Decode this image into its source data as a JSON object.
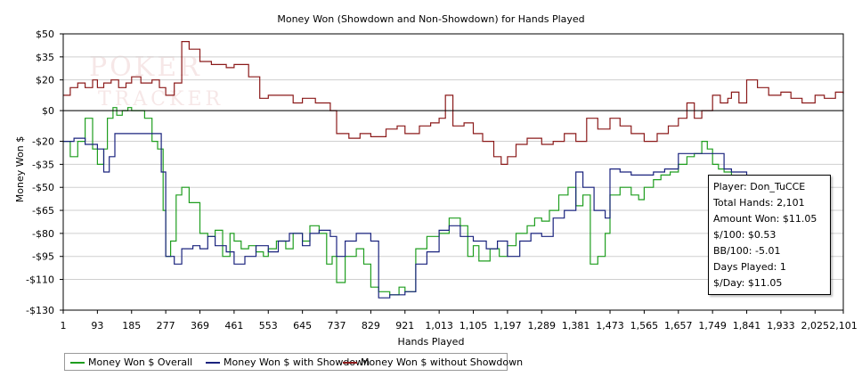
{
  "chart_data": {
    "type": "line",
    "title": "Money Won (Showdown and Non-Showdown) for Hands Played",
    "xlabel": "Hands Played",
    "ylabel": "Money Won $",
    "xlim": [
      1,
      2101
    ],
    "ylim": [
      -130,
      50
    ],
    "x_ticks": [
      1,
      93,
      185,
      277,
      369,
      461,
      553,
      645,
      737,
      829,
      921,
      1013,
      1105,
      1197,
      1289,
      1381,
      1473,
      1565,
      1657,
      1749,
      1841,
      1933,
      2025,
      2101
    ],
    "x_tick_labels": [
      "1",
      "93",
      "185",
      "277",
      "369",
      "461",
      "553",
      "645",
      "737",
      "829",
      "921",
      "1,013",
      "1,105",
      "1,197",
      "1,289",
      "1,381",
      "1,473",
      "1,565",
      "1,657",
      "1,749",
      "1,841",
      "1,933",
      "2,025",
      "2,101"
    ],
    "y_ticks": [
      50,
      35,
      20,
      0,
      -20,
      -35,
      -50,
      -65,
      -80,
      -95,
      -110,
      -130
    ],
    "y_tick_labels": [
      "$50",
      "$35",
      "$20",
      "$0",
      "-$20",
      "-$35",
      "-$50",
      "-$65",
      "-$80",
      "-$95",
      "-$110",
      "-$130"
    ],
    "grid": true,
    "legend": "bottom",
    "series": [
      {
        "name": "Money Won $ Overall",
        "color": "#1f9e1f",
        "x": [
          1,
          20,
          40,
          60,
          80,
          93,
          110,
          120,
          135,
          145,
          160,
          175,
          185,
          200,
          220,
          240,
          255,
          270,
          277,
          290,
          305,
          320,
          340,
          360,
          369,
          390,
          410,
          430,
          450,
          461,
          480,
          500,
          520,
          540,
          553,
          575,
          600,
          620,
          645,
          665,
          690,
          710,
          725,
          737,
          760,
          790,
          810,
          829,
          850,
          880,
          905,
          921,
          950,
          980,
          1013,
          1040,
          1070,
          1090,
          1105,
          1120,
          1150,
          1175,
          1197,
          1220,
          1250,
          1270,
          1289,
          1310,
          1335,
          1360,
          1381,
          1400,
          1420,
          1440,
          1460,
          1473,
          1500,
          1530,
          1550,
          1565,
          1590,
          1610,
          1635,
          1657,
          1680,
          1700,
          1720,
          1735,
          1749,
          1765,
          1780,
          1800,
          1841
        ],
        "y": [
          -20,
          -30,
          -20,
          -5,
          -25,
          -35,
          -25,
          -5,
          2,
          -3,
          0,
          2,
          0,
          0,
          -5,
          -20,
          -25,
          -65,
          -95,
          -85,
          -55,
          -50,
          -60,
          -60,
          -80,
          -82,
          -78,
          -95,
          -80,
          -85,
          -90,
          -88,
          -92,
          -95,
          -90,
          -85,
          -90,
          -80,
          -85,
          -75,
          -80,
          -100,
          -95,
          -112,
          -95,
          -90,
          -100,
          -115,
          -118,
          -120,
          -115,
          -118,
          -90,
          -82,
          -80,
          -70,
          -75,
          -95,
          -88,
          -98,
          -90,
          -95,
          -88,
          -80,
          -75,
          -70,
          -72,
          -65,
          -55,
          -50,
          -62,
          -55,
          -100,
          -95,
          -80,
          -55,
          -50,
          -55,
          -58,
          -50,
          -45,
          -42,
          -40,
          -35,
          -30,
          -28,
          -20,
          -25,
          -35,
          -38,
          -40,
          -45,
          -45
        ]
      },
      {
        "name": "Money Won $ with Showdown",
        "color": "#1a237e",
        "x": [
          1,
          30,
          60,
          93,
          110,
          125,
          140,
          185,
          200,
          230,
          250,
          265,
          277,
          300,
          320,
          350,
          369,
          390,
          410,
          440,
          461,
          490,
          520,
          553,
          580,
          610,
          645,
          665,
          690,
          720,
          737,
          760,
          790,
          829,
          850,
          880,
          921,
          950,
          980,
          1013,
          1040,
          1070,
          1105,
          1140,
          1170,
          1197,
          1230,
          1260,
          1289,
          1320,
          1350,
          1381,
          1400,
          1430,
          1460,
          1473,
          1500,
          1530,
          1565,
          1590,
          1620,
          1657,
          1690,
          1720,
          1749,
          1780,
          1800,
          1841
        ],
        "y": [
          -20,
          -18,
          -22,
          -25,
          -40,
          -30,
          -15,
          -15,
          -15,
          -15,
          -15,
          -40,
          -95,
          -100,
          -90,
          -88,
          -90,
          -82,
          -88,
          -92,
          -100,
          -95,
          -88,
          -92,
          -85,
          -80,
          -88,
          -80,
          -78,
          -82,
          -95,
          -85,
          -80,
          -85,
          -122,
          -120,
          -118,
          -100,
          -92,
          -78,
          -75,
          -82,
          -85,
          -90,
          -85,
          -95,
          -85,
          -80,
          -82,
          -70,
          -65,
          -40,
          -50,
          -65,
          -70,
          -38,
          -40,
          -42,
          -42,
          -40,
          -38,
          -28,
          -28,
          -28,
          -28,
          -38,
          -40,
          -45
        ]
      },
      {
        "name": "Money Won $ without Showdown",
        "color": "#8b1a1a",
        "x": [
          1,
          20,
          40,
          60,
          80,
          93,
          110,
          130,
          150,
          170,
          185,
          210,
          240,
          260,
          277,
          300,
          320,
          340,
          369,
          400,
          440,
          461,
          500,
          530,
          553,
          590,
          620,
          645,
          680,
          720,
          737,
          770,
          800,
          829,
          870,
          900,
          921,
          960,
          990,
          1013,
          1030,
          1050,
          1080,
          1105,
          1130,
          1160,
          1180,
          1197,
          1220,
          1250,
          1289,
          1320,
          1350,
          1381,
          1410,
          1440,
          1473,
          1500,
          1530,
          1565,
          1600,
          1630,
          1657,
          1680,
          1700,
          1720,
          1749,
          1770,
          1790,
          1800,
          1820,
          1841,
          1870,
          1900,
          1933,
          1960,
          1990,
          2025,
          2050,
          2080,
          2101
        ],
        "y": [
          10,
          15,
          18,
          15,
          20,
          15,
          18,
          20,
          15,
          18,
          22,
          18,
          20,
          15,
          10,
          18,
          45,
          40,
          32,
          30,
          28,
          30,
          22,
          8,
          10,
          10,
          5,
          8,
          5,
          0,
          -15,
          -18,
          -15,
          -17,
          -12,
          -10,
          -15,
          -10,
          -8,
          -5,
          10,
          -10,
          -8,
          -15,
          -20,
          -30,
          -35,
          -30,
          -22,
          -18,
          -22,
          -20,
          -15,
          -20,
          -5,
          -12,
          -5,
          -10,
          -15,
          -20,
          -15,
          -10,
          -5,
          5,
          -5,
          0,
          10,
          5,
          8,
          12,
          5,
          20,
          15,
          10,
          12,
          8,
          5,
          10,
          8,
          12,
          11
        ]
      }
    ]
  },
  "info_box": {
    "player": "Player: Don_TuCCE",
    "total_hands": "Total Hands: 2,101",
    "amount_won": "Amount Won: $11.05",
    "per_100": "$/100: $0.53",
    "bb_per_100": "BB/100: -5.01",
    "days_played": "Days Played: 1",
    "per_day": "$/Day: $11.05"
  },
  "watermark": "POKER TRACKER"
}
